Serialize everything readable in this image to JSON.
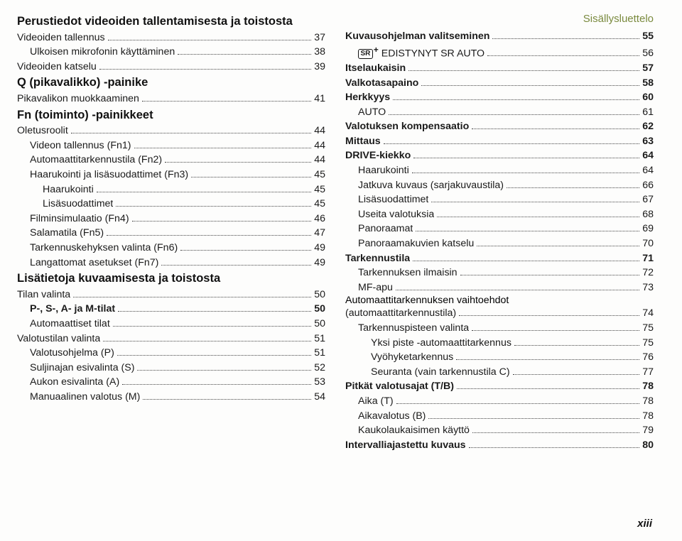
{
  "header": "Sisällysluettelo",
  "page_number": "xiii",
  "left": [
    {
      "type": "section",
      "text": "Perustiedot videoiden tallentamisesta ja toistosta"
    },
    {
      "label": "Videoiden tallennus",
      "page": "37",
      "indent": 0
    },
    {
      "label": "Ulkoisen mikrofonin käyttäminen",
      "page": "38",
      "indent": 1
    },
    {
      "label": "Videoiden katselu",
      "page": "39",
      "indent": 0
    },
    {
      "type": "section",
      "text": "Q (pikavalikko) -painike"
    },
    {
      "label": "Pikavalikon muokkaaminen",
      "page": "41",
      "indent": 0
    },
    {
      "type": "section",
      "text": "Fn (toiminto) -painikkeet"
    },
    {
      "label": "Oletusroolit",
      "page": "44",
      "indent": 0
    },
    {
      "label": "Videon tallennus (Fn1)",
      "page": "44",
      "indent": 1
    },
    {
      "label": "Automaattitarkennustila (Fn2)",
      "page": "44",
      "indent": 1
    },
    {
      "label": "Haarukointi ja lisäsuodattimet (Fn3)",
      "page": "45",
      "indent": 1
    },
    {
      "label": "Haarukointi",
      "page": "45",
      "indent": 2
    },
    {
      "label": "Lisäsuodattimet",
      "page": "45",
      "indent": 2
    },
    {
      "label": "Filminsimulaatio (Fn4)",
      "page": "46",
      "indent": 1
    },
    {
      "label": "Salamatila (Fn5)",
      "page": "47",
      "indent": 1
    },
    {
      "label": "Tarkennuskehyksen valinta (Fn6)",
      "page": "49",
      "indent": 1
    },
    {
      "label": "Langattomat asetukset (Fn7)",
      "page": "49",
      "indent": 1
    },
    {
      "type": "section",
      "text": "Lisätietoja kuvaamisesta ja toistosta"
    },
    {
      "label": "Tilan valinta",
      "page": "50",
      "indent": 0
    },
    {
      "label": "P-, S-, A- ja M-tilat",
      "page": "50",
      "indent": 1,
      "bold": true
    },
    {
      "label": "Automaattiset tilat",
      "page": "50",
      "indent": 1
    },
    {
      "label": "Valotustilan valinta",
      "page": "51",
      "indent": 0
    },
    {
      "label": "Valotusohjelma (P)",
      "page": "51",
      "indent": 1
    },
    {
      "label": "Suljinajan esivalinta (S)",
      "page": "52",
      "indent": 1
    },
    {
      "label": "Aukon esivalinta (A)",
      "page": "53",
      "indent": 1
    },
    {
      "label": "Manuaalinen valotus (M)",
      "page": "54",
      "indent": 1
    }
  ],
  "right": [
    {
      "label": "Kuvausohjelman valitseminen",
      "page": "55",
      "indent": 0,
      "bold": true
    },
    {
      "label": "SR+ EDISTYNYT SR AUTO",
      "page": "56",
      "indent": 1,
      "sricon": true,
      "tail": " EDISTYNYT SR AUTO"
    },
    {
      "label": "Itselaukaisin",
      "page": "57",
      "indent": 0,
      "bold": true
    },
    {
      "label": "Valkotasapaino",
      "page": "58",
      "indent": 0,
      "bold": true
    },
    {
      "label": "Herkkyys",
      "page": "60",
      "indent": 0,
      "bold": true
    },
    {
      "label": "AUTO",
      "page": "61",
      "indent": 1
    },
    {
      "label": "Valotuksen kompensaatio",
      "page": "62",
      "indent": 0,
      "bold": true
    },
    {
      "label": "Mittaus",
      "page": "63",
      "indent": 0,
      "bold": true
    },
    {
      "label": "DRIVE-kiekko",
      "page": "64",
      "indent": 0,
      "bold": true
    },
    {
      "label": "Haarukointi",
      "page": "64",
      "indent": 1
    },
    {
      "label": "Jatkuva kuvaus (sarjakuvaustila)",
      "page": "66",
      "indent": 1
    },
    {
      "label": "Lisäsuodattimet",
      "page": "67",
      "indent": 1
    },
    {
      "label": "Useita valotuksia",
      "page": "68",
      "indent": 1
    },
    {
      "label": "Panoraamat",
      "page": "69",
      "indent": 1
    },
    {
      "label": "Panoraamakuvien katselu",
      "page": "70",
      "indent": 1
    },
    {
      "label": "Tarkennustila",
      "page": "71",
      "indent": 0,
      "bold": true
    },
    {
      "label": "Tarkennuksen ilmaisin",
      "page": "72",
      "indent": 1
    },
    {
      "label": "MF-apu",
      "page": "73",
      "indent": 1
    },
    {
      "label": "Automaattitarkennuksen vaihtoehdot (automaattitarkennustila)",
      "page": "74",
      "indent": 1,
      "wrap": true
    },
    {
      "label": "Tarkennuspisteen valinta",
      "page": "75",
      "indent": 1
    },
    {
      "label": "Yksi piste -automaattitarkennus",
      "page": "75",
      "indent": 2
    },
    {
      "label": "Vyöhyketarkennus",
      "page": "76",
      "indent": 2
    },
    {
      "label": "Seuranta (vain tarkennustila C)",
      "page": "77",
      "indent": 2
    },
    {
      "label": "Pitkät valotusajat (T/B)",
      "page": "78",
      "indent": 0,
      "bold": true
    },
    {
      "label": "Aika (T)",
      "page": "78",
      "indent": 1
    },
    {
      "label": "Aikavalotus (B)",
      "page": "78",
      "indent": 1
    },
    {
      "label": "Kaukolaukaisimen käyttö",
      "page": "79",
      "indent": 1
    },
    {
      "label": "Intervalliajastettu kuvaus",
      "page": "80",
      "indent": 0,
      "bold": true
    }
  ]
}
